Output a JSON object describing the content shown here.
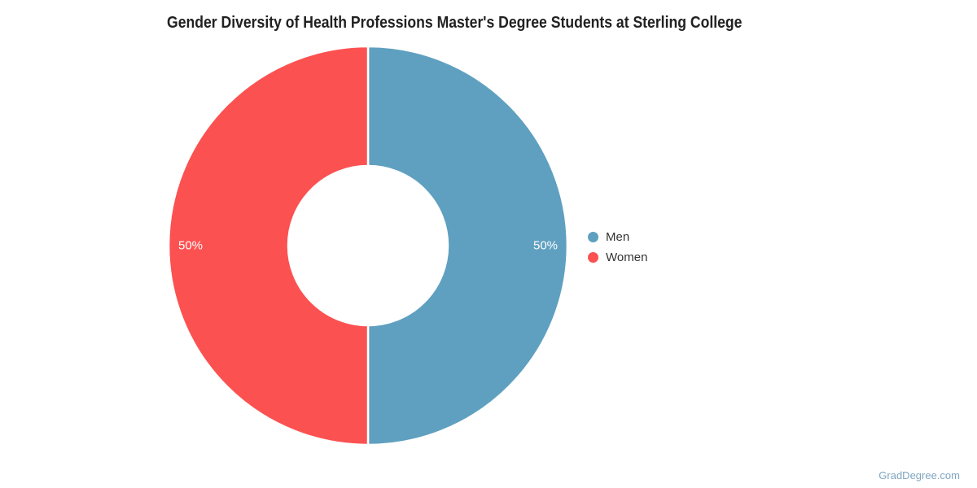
{
  "chart_data": {
    "type": "pie",
    "donut": true,
    "title": "Gender Diversity of Health Professions Master's Degree Students at Sterling College",
    "categories": [
      "Men",
      "Women"
    ],
    "values": [
      50,
      50
    ],
    "slice_labels": [
      "50%",
      "50%"
    ],
    "colors": [
      "#5FA0C0",
      "#FC5151"
    ],
    "slice_label_color": "#FFFFFF",
    "start_angle_deg": 0,
    "direction": "clockwise",
    "legend_position": "middle-right",
    "grid": false
  },
  "legend": {
    "items": [
      {
        "label": "Men",
        "color": "#5FA0C0"
      },
      {
        "label": "Women",
        "color": "#FC5151"
      }
    ]
  },
  "watermark": {
    "text": "GradDegree.com",
    "color": "#7FA5C0"
  }
}
